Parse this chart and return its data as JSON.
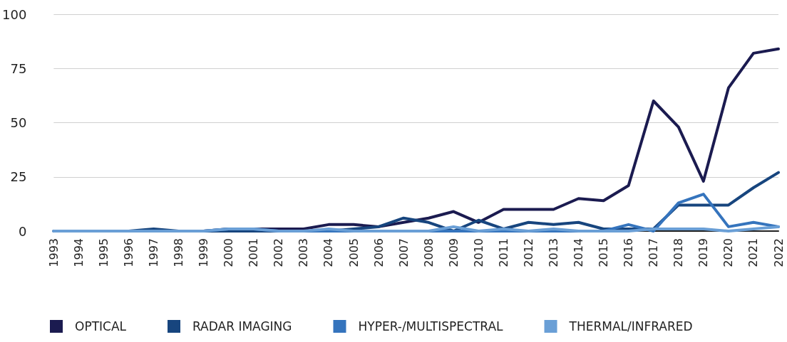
{
  "chart_data": {
    "type": "line",
    "categories": [
      "1993",
      "1994",
      "1995",
      "1996",
      "1997",
      "1998",
      "1999",
      "2000",
      "2001",
      "2002",
      "2003",
      "2004",
      "2005",
      "2006",
      "2007",
      "2008",
      "2009",
      "2010",
      "2011",
      "2012",
      "2013",
      "2014",
      "2015",
      "2016",
      "2017",
      "2018",
      "2019",
      "2020",
      "2021",
      "2022"
    ],
    "series": [
      {
        "name": "OPTICAL",
        "color": "#1b1b50",
        "values": [
          null,
          null,
          0,
          0,
          0,
          0,
          0,
          1,
          1,
          1,
          1,
          3,
          3,
          2,
          4,
          6,
          9,
          4,
          10,
          10,
          10,
          15,
          14,
          21,
          60,
          48,
          23,
          66,
          82,
          84
        ]
      },
      {
        "name": "RADAR IMAGING",
        "color": "#17457e",
        "values": [
          0,
          0,
          0,
          0,
          1,
          0,
          0,
          0,
          0,
          0,
          0,
          0,
          1,
          2,
          6,
          4,
          0,
          5,
          1,
          4,
          3,
          4,
          1,
          1,
          1,
          12,
          12,
          12,
          20,
          27
        ]
      },
      {
        "name": "HYPER-/MULTISPECTRAL",
        "color": "#3574bd",
        "values": [
          0,
          0,
          0,
          0,
          0,
          0,
          0,
          1,
          1,
          0,
          0,
          0,
          0,
          0,
          0,
          0,
          0,
          0,
          0,
          0,
          0,
          0,
          0,
          3,
          0,
          13,
          17,
          2,
          4,
          2
        ]
      },
      {
        "name": "THERMAL/INFRARED",
        "color": "#6a9fd6",
        "values": [
          0,
          0,
          0,
          0,
          0,
          0,
          0,
          1,
          1,
          0,
          0,
          1,
          0,
          0,
          0,
          0,
          2,
          0,
          1,
          0,
          1,
          0,
          0,
          0,
          1,
          1,
          1,
          0,
          1,
          2
        ]
      }
    ],
    "ylim": [
      0,
      100
    ],
    "yticks": [
      0,
      25,
      50,
      75,
      100
    ],
    "grid": "y",
    "legend": "bottom left",
    "marker": "none",
    "line_style": "solid"
  }
}
